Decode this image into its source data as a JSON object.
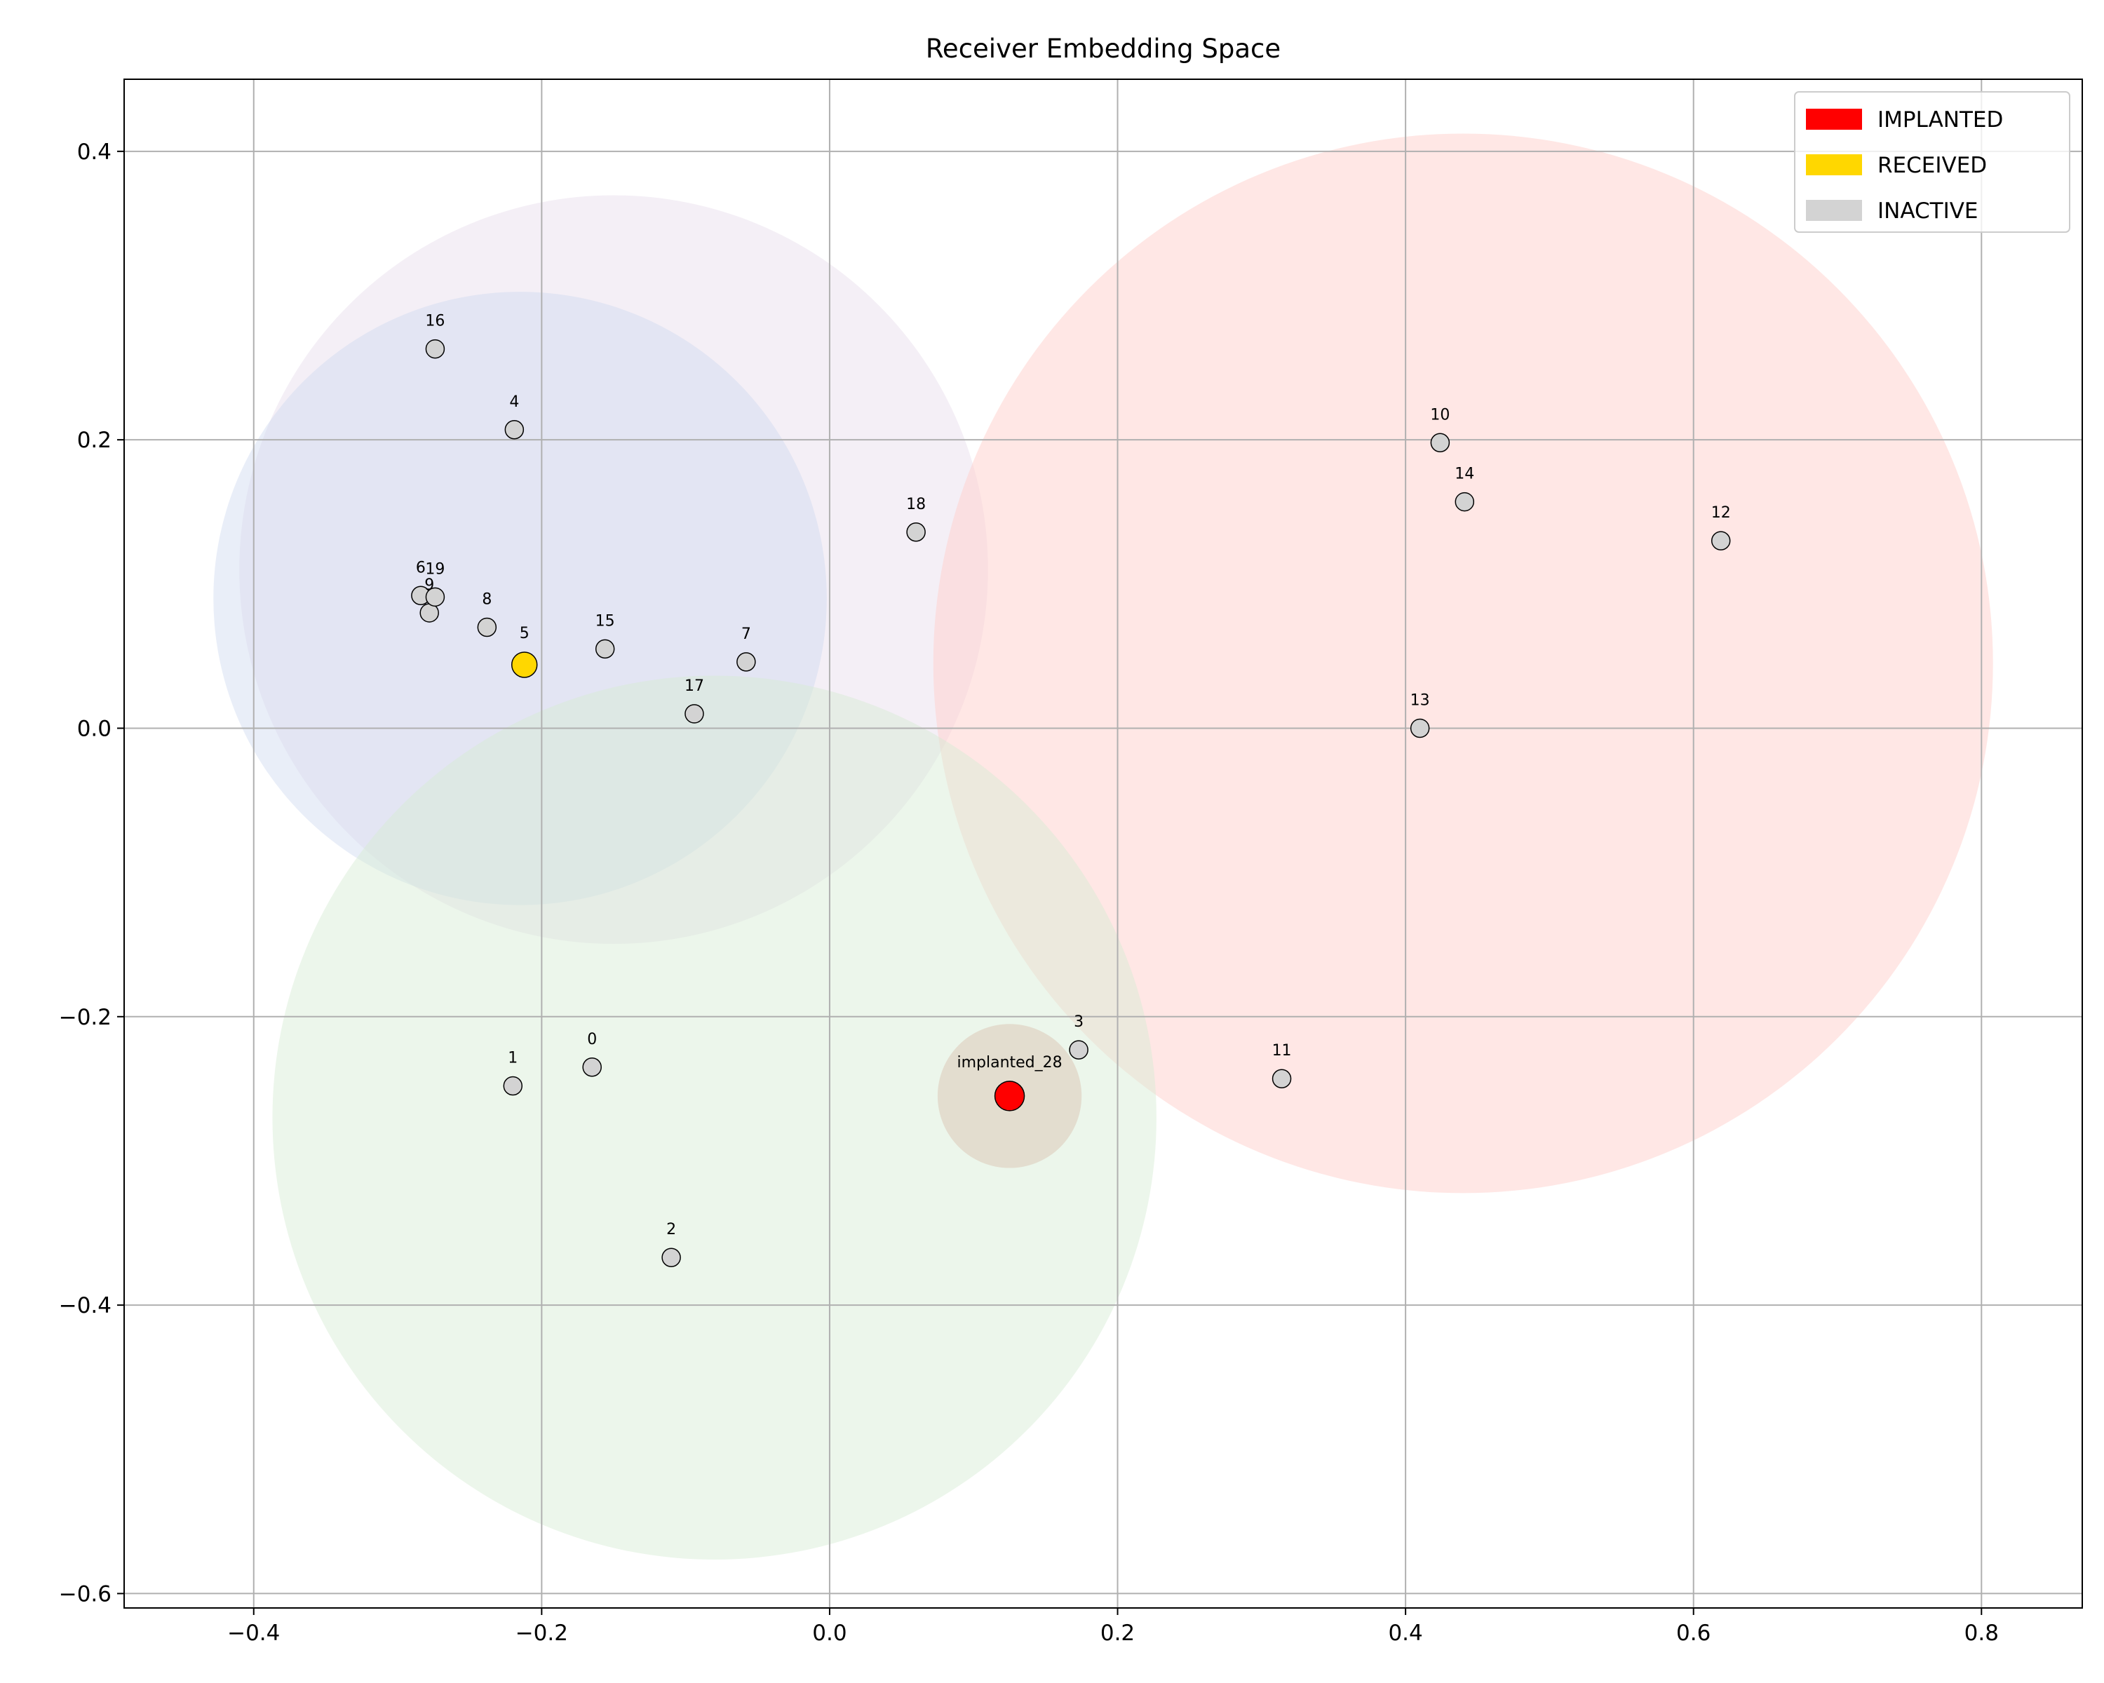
{
  "chart_data": {
    "type": "scatter",
    "title": "Receiver Embedding Space",
    "xlabel": "",
    "ylabel": "",
    "xlim": [
      -0.49,
      0.87
    ],
    "ylim": [
      -0.61,
      0.45
    ],
    "xticks": [
      -0.4,
      -0.2,
      0.0,
      0.2,
      0.4,
      0.6,
      0.8
    ],
    "xtick_labels": [
      "−0.4",
      "−0.2",
      "0.0",
      "0.2",
      "0.4",
      "0.6",
      "0.8"
    ],
    "yticks": [
      -0.6,
      -0.4,
      -0.2,
      0.0,
      0.2,
      0.4
    ],
    "ytick_labels": [
      "−0.6",
      "−0.4",
      "−0.2",
      "0.0",
      "0.2",
      "0.4"
    ],
    "grid": true,
    "legend_position": "top-right",
    "legend": [
      {
        "label": "IMPLANTED",
        "color": "#ff0000"
      },
      {
        "label": "RECEIVED",
        "color": "#ffd700"
      },
      {
        "label": "INACTIVE",
        "color": "#d3d3d3"
      }
    ],
    "regions": [
      {
        "cx": -0.15,
        "cy": 0.11,
        "r": 0.26,
        "color": "#e6dcec",
        "opacity": 0.45
      },
      {
        "cx": -0.215,
        "cy": 0.09,
        "r": 0.213,
        "color": "#cfd9f0",
        "opacity": 0.45
      },
      {
        "cx": 0.44,
        "cy": 0.045,
        "r": 0.368,
        "color": "#ffd0cc",
        "opacity": 0.5
      },
      {
        "cx": -0.08,
        "cy": -0.27,
        "r": 0.307,
        "color": "#d5ecd2",
        "opacity": 0.45
      },
      {
        "cx": 0.125,
        "cy": -0.255,
        "r": 0.05,
        "color": "#ddc9b8",
        "opacity": 0.55
      }
    ],
    "points": [
      {
        "label": "0",
        "x": -0.165,
        "y": -0.235,
        "status": "INACTIVE"
      },
      {
        "label": "1",
        "x": -0.22,
        "y": -0.248,
        "status": "INACTIVE"
      },
      {
        "label": "2",
        "x": -0.11,
        "y": -0.367,
        "status": "INACTIVE"
      },
      {
        "label": "3",
        "x": 0.173,
        "y": -0.223,
        "status": "INACTIVE"
      },
      {
        "label": "4",
        "x": -0.219,
        "y": 0.207,
        "status": "INACTIVE"
      },
      {
        "label": "5",
        "x": -0.212,
        "y": 0.044,
        "status": "RECEIVED"
      },
      {
        "label": "6",
        "x": -0.284,
        "y": 0.092,
        "status": "INACTIVE"
      },
      {
        "label": "7",
        "x": -0.058,
        "y": 0.046,
        "status": "INACTIVE"
      },
      {
        "label": "8",
        "x": -0.238,
        "y": 0.07,
        "status": "INACTIVE"
      },
      {
        "label": "9",
        "x": -0.278,
        "y": 0.08,
        "status": "INACTIVE"
      },
      {
        "label": "10",
        "x": 0.424,
        "y": 0.198,
        "status": "INACTIVE"
      },
      {
        "label": "11",
        "x": 0.314,
        "y": -0.243,
        "status": "INACTIVE"
      },
      {
        "label": "12",
        "x": 0.619,
        "y": 0.13,
        "status": "INACTIVE"
      },
      {
        "label": "13",
        "x": 0.41,
        "y": 0.0,
        "status": "INACTIVE"
      },
      {
        "label": "14",
        "x": 0.441,
        "y": 0.157,
        "status": "INACTIVE"
      },
      {
        "label": "15",
        "x": -0.156,
        "y": 0.055,
        "status": "INACTIVE"
      },
      {
        "label": "16",
        "x": -0.274,
        "y": 0.263,
        "status": "INACTIVE"
      },
      {
        "label": "17",
        "x": -0.094,
        "y": 0.01,
        "status": "INACTIVE"
      },
      {
        "label": "18",
        "x": 0.06,
        "y": 0.136,
        "status": "INACTIVE"
      },
      {
        "label": "19",
        "x": -0.274,
        "y": 0.091,
        "status": "INACTIVE"
      },
      {
        "label": "implanted_28",
        "x": 0.125,
        "y": -0.255,
        "status": "IMPLANTED"
      }
    ]
  }
}
